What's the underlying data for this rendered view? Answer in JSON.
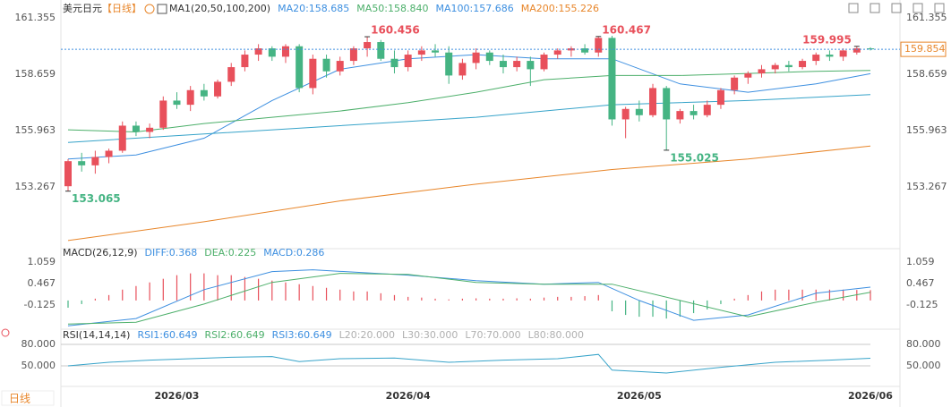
{
  "chart_data": [
    {
      "type": "candlestick",
      "title": "美元日元",
      "period": "【日线】",
      "legend": [
        {
          "label": "MA1(20,50,100,200)",
          "color": "#333333"
        },
        {
          "label": "MA20:158.685",
          "color": "#3d8fe0"
        },
        {
          "label": "MA50:158.840",
          "color": "#4caf6a"
        },
        {
          "label": "MA100:157.686",
          "color": "#3d8fe0"
        },
        {
          "label": "MA200:155.226",
          "color": "#e8862a"
        }
      ],
      "categories": [
        null,
        null,
        null,
        null,
        null,
        null,
        null,
        null,
        "2026/03",
        null,
        null,
        null,
        null,
        null,
        null,
        null,
        null,
        null,
        null,
        null,
        null,
        null,
        null,
        null,
        null,
        "2026/04",
        null,
        null,
        null,
        null,
        null,
        null,
        null,
        null,
        null,
        null,
        null,
        null,
        null,
        null,
        null,
        null,
        "2026/05",
        null,
        null,
        null,
        null,
        null,
        null,
        null,
        null,
        null,
        null,
        null,
        null,
        null,
        null,
        null,
        null,
        "2026/06"
      ],
      "candles": [
        [
          153.3,
          154.6,
          153.065,
          154.5
        ],
        [
          154.5,
          154.9,
          154.0,
          154.3
        ],
        [
          154.3,
          155.0,
          153.9,
          154.7
        ],
        [
          154.7,
          155.1,
          154.4,
          155.0
        ],
        [
          155.0,
          156.4,
          154.9,
          156.2
        ],
        [
          156.2,
          156.4,
          155.7,
          155.9
        ],
        [
          155.9,
          156.3,
          155.6,
          156.1
        ],
        [
          156.1,
          157.6,
          156.0,
          157.4
        ],
        [
          157.4,
          157.8,
          157.0,
          157.2
        ],
        [
          157.2,
          158.1,
          156.9,
          157.9
        ],
        [
          157.9,
          158.2,
          157.4,
          157.6
        ],
        [
          157.6,
          158.4,
          157.5,
          158.3
        ],
        [
          158.3,
          159.2,
          158.1,
          159.0
        ],
        [
          159.0,
          159.8,
          158.8,
          159.6
        ],
        [
          159.6,
          160.1,
          159.3,
          159.9
        ],
        [
          159.9,
          160.0,
          159.3,
          159.5
        ],
        [
          159.5,
          160.1,
          159.2,
          160.0
        ],
        [
          160.0,
          160.1,
          157.8,
          158.0
        ],
        [
          158.0,
          159.6,
          157.7,
          159.4
        ],
        [
          159.4,
          159.6,
          158.5,
          158.8
        ],
        [
          158.8,
          159.5,
          158.6,
          159.3
        ],
        [
          159.3,
          160.0,
          159.1,
          159.9
        ],
        [
          159.9,
          160.456,
          159.5,
          160.2
        ],
        [
          160.2,
          160.3,
          159.3,
          159.4
        ],
        [
          159.4,
          159.8,
          158.7,
          159.0
        ],
        [
          159.0,
          159.8,
          158.8,
          159.6
        ],
        [
          159.6,
          160.0,
          159.3,
          159.8
        ],
        [
          159.8,
          160.1,
          159.5,
          159.7
        ],
        [
          159.7,
          160.0,
          158.2,
          158.6
        ],
        [
          158.6,
          159.4,
          158.4,
          159.2
        ],
        [
          159.2,
          159.9,
          158.9,
          159.7
        ],
        [
          159.7,
          159.8,
          159.1,
          159.3
        ],
        [
          159.3,
          159.6,
          158.7,
          159.0
        ],
        [
          159.0,
          159.5,
          158.8,
          159.3
        ],
        [
          159.3,
          159.5,
          158.1,
          158.9
        ],
        [
          158.9,
          159.7,
          158.8,
          159.6
        ],
        [
          159.6,
          159.9,
          159.4,
          159.8
        ],
        [
          159.8,
          160.0,
          159.5,
          159.9
        ],
        [
          159.9,
          160.1,
          159.6,
          159.7
        ],
        [
          159.7,
          160.467,
          159.5,
          160.4
        ],
        [
          160.4,
          160.5,
          156.2,
          156.5
        ],
        [
          156.5,
          157.1,
          155.6,
          157.0
        ],
        [
          157.0,
          157.4,
          156.4,
          156.7
        ],
        [
          156.7,
          158.2,
          156.6,
          158.0
        ],
        [
          158.0,
          158.1,
          155.025,
          156.5
        ],
        [
          156.5,
          157.0,
          156.3,
          156.9
        ],
        [
          156.9,
          157.2,
          156.5,
          156.7
        ],
        [
          156.7,
          157.4,
          156.6,
          157.2
        ],
        [
          157.2,
          158.0,
          157.0,
          157.9
        ],
        [
          157.9,
          158.6,
          157.7,
          158.5
        ],
        [
          158.5,
          158.8,
          158.2,
          158.7
        ],
        [
          158.7,
          159.1,
          158.5,
          158.9
        ],
        [
          158.9,
          159.2,
          158.7,
          159.1
        ],
        [
          159.1,
          159.3,
          158.8,
          159.0
        ],
        [
          159.0,
          159.4,
          158.9,
          159.3
        ],
        [
          159.3,
          159.7,
          159.1,
          159.6
        ],
        [
          159.6,
          159.8,
          159.3,
          159.5
        ],
        [
          159.5,
          159.9,
          159.3,
          159.8
        ],
        [
          159.7,
          159.995,
          159.6,
          159.9
        ],
        [
          159.9,
          159.95,
          159.8,
          159.854
        ]
      ],
      "up_color": "#e8505b",
      "down_color": "#45b483",
      "marked_prices": [
        160.456,
        153.065,
        160.467,
        155.025,
        159.995
      ],
      "last_price": 159.854,
      "lines": [
        {
          "name": "MA20",
          "color": "#3d8fe0",
          "x": [
            0,
            5,
            10,
            15,
            20,
            25,
            30,
            35,
            40,
            45,
            50,
            55,
            59
          ],
          "values": [
            154.6,
            154.8,
            155.6,
            157.4,
            158.9,
            159.4,
            159.6,
            159.4,
            159.4,
            158.2,
            157.8,
            158.2,
            158.685
          ]
        },
        {
          "name": "MA50",
          "color": "#4caf6a",
          "x": [
            0,
            5,
            10,
            15,
            20,
            25,
            30,
            35,
            40,
            45,
            50,
            55,
            59
          ],
          "values": [
            156.0,
            155.9,
            156.3,
            156.6,
            156.9,
            157.3,
            157.8,
            158.4,
            158.6,
            158.6,
            158.7,
            158.8,
            158.84
          ]
        },
        {
          "name": "MA100",
          "color": "#36a3c9",
          "x": [
            0,
            10,
            20,
            30,
            40,
            50,
            59
          ],
          "values": [
            155.4,
            155.8,
            156.2,
            156.6,
            157.2,
            157.4,
            157.686
          ]
        },
        {
          "name": "MA200",
          "color": "#e8862a",
          "x": [
            0,
            10,
            20,
            30,
            40,
            50,
            59
          ],
          "values": [
            150.7,
            151.6,
            152.6,
            153.4,
            154.1,
            154.6,
            155.226
          ]
        }
      ],
      "ylim": [
        150.44,
        162.0
      ],
      "yticks": [
        161.355,
        158.659,
        155.963,
        153.267
      ]
    },
    {
      "type": "macd",
      "legend": [
        {
          "label": "MACD(26,12,9)",
          "color": "#333333"
        },
        {
          "label": "DIFF:0.368",
          "color": "#3d8fe0"
        },
        {
          "label": "DEA:0.225",
          "color": "#4caf6a"
        },
        {
          "label": "MACD:0.286",
          "color": "#3d8fe0"
        }
      ],
      "histogram": [
        -0.2,
        -0.1,
        0.05,
        0.15,
        0.3,
        0.4,
        0.5,
        0.6,
        0.7,
        0.75,
        0.75,
        0.7,
        0.7,
        0.65,
        0.6,
        0.55,
        0.5,
        0.45,
        0.4,
        0.35,
        0.3,
        0.25,
        0.25,
        0.2,
        0.15,
        0.1,
        0.08,
        0.05,
        0.03,
        0.05,
        0.06,
        0.05,
        0.05,
        0.06,
        0.05,
        0.08,
        0.1,
        0.1,
        0.12,
        0.15,
        -0.3,
        -0.4,
        -0.45,
        -0.45,
        -0.5,
        -0.45,
        -0.35,
        -0.25,
        -0.1,
        0.05,
        0.15,
        0.25,
        0.3,
        0.3,
        0.3,
        0.3,
        0.3,
        0.3,
        0.29,
        0.286
      ],
      "lines": [
        {
          "name": "DIFF",
          "color": "#3d8fe0",
          "x": [
            0,
            5,
            10,
            15,
            18,
            25,
            30,
            35,
            39,
            42,
            46,
            50,
            55,
            59
          ],
          "values": [
            -0.7,
            -0.5,
            0.3,
            0.8,
            0.85,
            0.7,
            0.55,
            0.45,
            0.5,
            0.0,
            -0.55,
            -0.4,
            0.2,
            0.368
          ]
        },
        {
          "name": "DEA",
          "color": "#4caf6a",
          "x": [
            0,
            5,
            10,
            15,
            20,
            25,
            30,
            35,
            40,
            45,
            50,
            55,
            59
          ],
          "values": [
            -0.65,
            -0.6,
            -0.1,
            0.5,
            0.75,
            0.72,
            0.5,
            0.45,
            0.45,
            0.0,
            -0.45,
            -0.05,
            0.225
          ]
        }
      ],
      "ylim": [
        -0.72,
        1.26
      ],
      "yticks": [
        1.059,
        0.467,
        -0.125
      ]
    },
    {
      "type": "line",
      "legend": [
        {
          "label": "RSI(14,14,14)",
          "color": "#333333"
        },
        {
          "label": "RSI1:60.649",
          "color": "#3d8fe0"
        },
        {
          "label": "RSI2:60.649",
          "color": "#4caf6a"
        },
        {
          "label": "RSI3:60.649",
          "color": "#3d8fe0"
        },
        {
          "label": "L20:20.000",
          "color": "#b0b0b0"
        },
        {
          "label": "L30:30.000",
          "color": "#b0b0b0"
        },
        {
          "label": "L70:70.000",
          "color": "#b0b0b0"
        },
        {
          "label": "L80:80.000",
          "color": "#b0b0b0"
        }
      ],
      "lines": [
        {
          "name": "RSI1",
          "color": "#36a3c9",
          "x": [
            0,
            3,
            6,
            9,
            12,
            15,
            17,
            20,
            24,
            28,
            32,
            36,
            39,
            40,
            44,
            48,
            52,
            56,
            59
          ],
          "values": [
            50,
            55,
            58,
            60,
            62,
            63,
            56,
            60,
            61,
            55,
            58,
            60,
            66,
            44,
            40,
            48,
            55,
            58,
            60.649
          ]
        }
      ],
      "ylim": [
        21.25,
        92.5
      ],
      "yticks": [
        {
          "value": 80,
          "label": "80.000"
        },
        {
          "value": 50,
          "label": "50.000"
        }
      ]
    }
  ],
  "footer": {
    "period_button": "日线"
  }
}
